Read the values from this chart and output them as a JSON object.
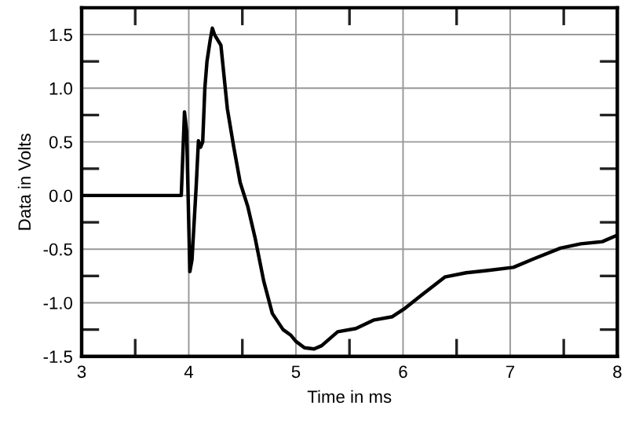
{
  "chart_data": {
    "type": "line",
    "xlabel": "Time in ms",
    "ylabel": "Data in Volts",
    "xlim": [
      3,
      8
    ],
    "ylim": [
      -1.5,
      1.75
    ],
    "xticks": [
      3,
      4,
      5,
      6,
      7,
      8
    ],
    "yticks": [
      {
        "value": -1.5,
        "label": "-1.5"
      },
      {
        "value": -1.0,
        "label": "-1.0"
      },
      {
        "value": -0.5,
        "label": "-0.5"
      },
      {
        "value": 0.0,
        "label": "0.0"
      },
      {
        "value": 0.5,
        "label": "0.5"
      },
      {
        "value": 1.0,
        "label": "1.0"
      },
      {
        "value": 1.5,
        "label": "1.5"
      }
    ],
    "grid": true,
    "legend": false,
    "series": [
      {
        "color": "#000000",
        "x": [
          3.0,
          3.5,
          3.93,
          3.96,
          3.98,
          4.01,
          4.03,
          4.07,
          4.09,
          4.11,
          4.13,
          4.15,
          4.17,
          4.2,
          4.22,
          4.24,
          4.27,
          4.3,
          4.36,
          4.42,
          4.48,
          4.55,
          4.62,
          4.7,
          4.78,
          4.88,
          4.95,
          5.0,
          5.08,
          5.17,
          5.24,
          5.39,
          5.56,
          5.73,
          5.9,
          6.02,
          6.17,
          6.39,
          6.59,
          6.78,
          7.03,
          7.22,
          7.47,
          7.66,
          7.86,
          8.0
        ],
        "values": [
          0.0,
          0.0,
          0.0,
          0.78,
          0.6,
          -0.71,
          -0.6,
          0.1,
          0.51,
          0.45,
          0.5,
          1.0,
          1.25,
          1.45,
          1.56,
          1.5,
          1.45,
          1.4,
          0.81,
          0.45,
          0.12,
          -0.1,
          -0.4,
          -0.8,
          -1.1,
          -1.25,
          -1.3,
          -1.36,
          -1.42,
          -1.43,
          -1.4,
          -1.27,
          -1.24,
          -1.16,
          -1.13,
          -1.05,
          -0.93,
          -0.76,
          -0.72,
          -0.7,
          -0.67,
          -0.59,
          -0.49,
          -0.45,
          -0.43,
          -0.37
        ]
      }
    ]
  }
}
